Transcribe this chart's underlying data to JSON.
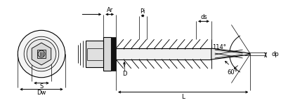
{
  "bg_color": "#ffffff",
  "line_color": "#000000",
  "dim_color": "#000000",
  "fig_width": 4.0,
  "fig_height": 1.6,
  "dpi": 100,
  "labels": {
    "Ar": "Ar",
    "Pi": "Pi",
    "ds": "ds",
    "dp": "dp",
    "D": "D",
    "L": "L",
    "S": "S",
    "Dw": "Dw",
    "angle1": "60°",
    "angle2": "114°"
  }
}
